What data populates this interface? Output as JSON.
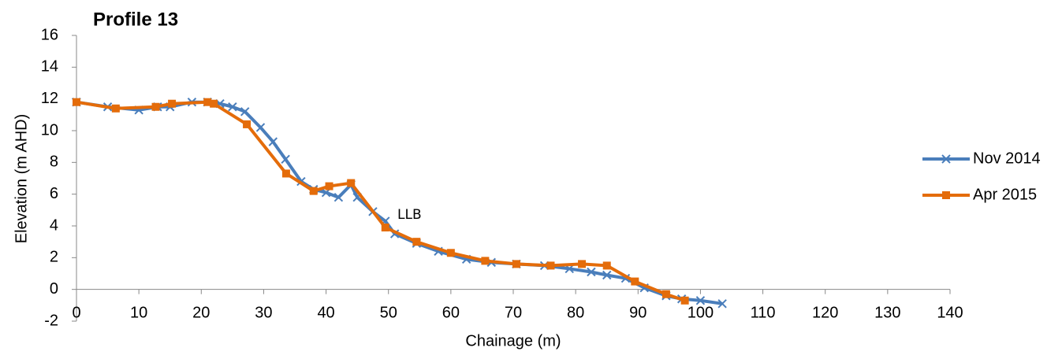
{
  "chart_data": {
    "type": "line",
    "title": "Profile 13",
    "x_label": "Chainage (m)",
    "y_label": "Elevation (m AHD)",
    "annotation": "LLB",
    "xlim": [
      0,
      140
    ],
    "xticks": [
      0,
      10,
      20,
      30,
      40,
      50,
      60,
      70,
      80,
      90,
      100,
      110,
      120,
      130,
      140
    ],
    "ylim": [
      -2,
      16
    ],
    "yticks": [
      -2,
      0,
      2,
      4,
      6,
      8,
      10,
      12,
      14,
      16
    ],
    "legend": "right",
    "series": [
      {
        "name": "Nov 2014",
        "color": "#4a7ebb",
        "marker": "x",
        "x": [
          0,
          5,
          10,
          13,
          15,
          18.5,
          21,
          23,
          25,
          27,
          29.5,
          31.5,
          33.5,
          36,
          38,
          40,
          42,
          44,
          45,
          47.5,
          49.5,
          51,
          54.5,
          58,
          62.5,
          66.5,
          70.5,
          75,
          79,
          82.5,
          85,
          88,
          91,
          94.5,
          97,
          100,
          103.5
        ],
        "values": [
          11.8,
          11.5,
          11.3,
          11.5,
          11.5,
          11.8,
          11.8,
          11.7,
          11.5,
          11.2,
          10.2,
          9.3,
          8.2,
          6.8,
          6.3,
          6.1,
          5.8,
          6.6,
          5.8,
          4.9,
          4.3,
          3.5,
          2.9,
          2.4,
          1.9,
          1.7,
          1.6,
          1.5,
          1.3,
          1.1,
          0.9,
          0.7,
          0.1,
          -0.4,
          -0.6,
          -0.7,
          -0.9
        ]
      },
      {
        "name": "Apr 2015",
        "color": "#e46c0a",
        "marker": "square",
        "x": [
          0,
          6.3,
          12.7,
          15.3,
          21,
          22,
          27.3,
          33.6,
          38,
          40.5,
          44,
          49.5,
          54.5,
          60,
          65.5,
          70.5,
          76,
          81,
          85,
          89.5,
          94.5,
          97.5
        ],
        "values": [
          11.8,
          11.4,
          11.5,
          11.7,
          11.8,
          11.7,
          10.4,
          7.3,
          6.2,
          6.5,
          6.7,
          3.9,
          3.0,
          2.3,
          1.8,
          1.6,
          1.5,
          1.6,
          1.5,
          0.5,
          -0.3,
          -0.7
        ]
      }
    ]
  }
}
